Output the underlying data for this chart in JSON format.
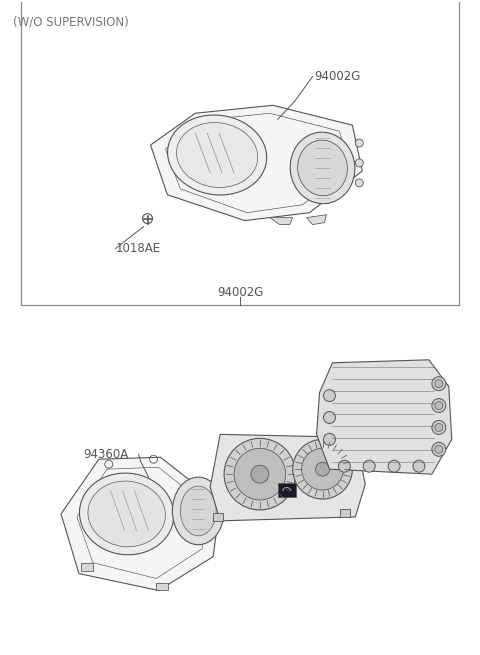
{
  "background_color": "#ffffff",
  "line_color": "#555555",
  "text_color": "#555555",
  "fig_width": 4.8,
  "fig_height": 6.55,
  "label_top": "(W/O SUPERVISION)",
  "label_94002G_top": "94002G",
  "label_1018AE": "1018AE",
  "label_94002G_box": "94002G",
  "label_94360A": "94360A"
}
